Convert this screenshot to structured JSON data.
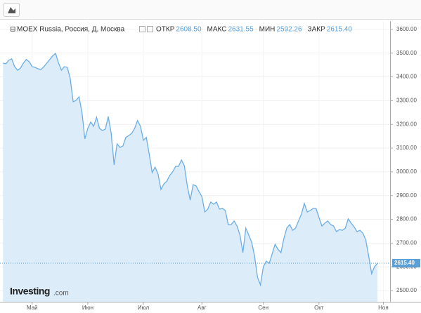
{
  "chart_data": {
    "type": "area",
    "title": "MOEX Russia, Россия, Д, Москва",
    "stats": [
      {
        "name": "ОТКР",
        "value": "2608.50"
      },
      {
        "name": "МАКС",
        "value": "2631.55"
      },
      {
        "name": "МИН",
        "value": "2592.26"
      },
      {
        "name": "ЗАКР",
        "value": "2615.40"
      }
    ],
    "last_label": "2615.40",
    "logo": [
      "Investing",
      ".com"
    ],
    "color": "#6caee6",
    "fill": "#dcedf9",
    "values": [
      3458,
      3455,
      3470,
      3476,
      3443,
      3428,
      3437,
      3458,
      3473,
      3464,
      3443,
      3440,
      3434,
      3431,
      3443,
      3458,
      3473,
      3488,
      3499,
      3458,
      3428,
      3443,
      3440,
      3393,
      3295,
      3301,
      3316,
      3251,
      3139,
      3183,
      3210,
      3192,
      3230,
      3183,
      3174,
      3180,
      3233,
      3162,
      3029,
      3118,
      3103,
      3109,
      3145,
      3153,
      3162,
      3183,
      3216,
      3192,
      3133,
      3145,
      3074,
      2997,
      3020,
      2991,
      2926,
      2949,
      2961,
      2985,
      3000,
      3023,
      3023,
      3050,
      3026,
      2941,
      2881,
      2946,
      2941,
      2917,
      2896,
      2831,
      2843,
      2873,
      2864,
      2873,
      2843,
      2846,
      2837,
      2778,
      2778,
      2793,
      2772,
      2734,
      2660,
      2763,
      2734,
      2704,
      2645,
      2556,
      2524,
      2601,
      2624,
      2615,
      2654,
      2695,
      2674,
      2660,
      2719,
      2763,
      2778,
      2754,
      2763,
      2793,
      2822,
      2867,
      2831,
      2837,
      2846,
      2846,
      2808,
      2772,
      2784,
      2793,
      2778,
      2772,
      2748,
      2757,
      2754,
      2763,
      2802,
      2784,
      2769,
      2748,
      2754,
      2742,
      2713,
      2645,
      2571,
      2601,
      2615.4
    ],
    "xlim": [
      -1,
      132.3
    ],
    "xticks": [
      {
        "value": 10,
        "label": "Май"
      },
      {
        "value": 29,
        "label": "Июн"
      },
      {
        "value": 48,
        "label": "Июл"
      },
      {
        "value": 68,
        "label": "Авг"
      },
      {
        "value": 89,
        "label": "Сен"
      },
      {
        "value": 108,
        "label": "Окт"
      },
      {
        "value": 130,
        "label": "Ноя"
      }
    ],
    "ylim": [
      2453,
      3635
    ],
    "yticks": [
      {
        "value": 2500,
        "label": "2500.00"
      },
      {
        "value": 2600,
        "label": "2600.00"
      },
      {
        "value": 2700,
        "label": "2700.00"
      },
      {
        "value": 2800,
        "label": "2800.00"
      },
      {
        "value": 2900,
        "label": "2900.00"
      },
      {
        "value": 3000,
        "label": "3000.00"
      },
      {
        "value": 3100,
        "label": "3100.00"
      },
      {
        "value": 3200,
        "label": "3200.00"
      },
      {
        "value": 3300,
        "label": "3300.00"
      },
      {
        "value": 3400,
        "label": "3400.00"
      },
      {
        "value": 3500,
        "label": "3500.00"
      },
      {
        "value": 3600,
        "label": "3600.00"
      }
    ],
    "grid": true
  }
}
